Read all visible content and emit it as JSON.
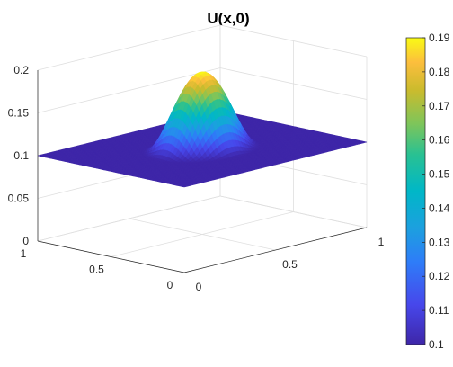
{
  "chart_data": {
    "type": "surface",
    "title": "U(x,0)",
    "xlabel": "",
    "ylabel": "",
    "zlabel": "",
    "x_ticks": [
      "0",
      "0.5",
      "1"
    ],
    "y_ticks": [
      "0",
      "0.5",
      "1"
    ],
    "z_ticks": [
      "0",
      "0.05",
      "0.1",
      "0.15",
      "0.2"
    ],
    "xlim": [
      0,
      1
    ],
    "ylim": [
      0,
      1
    ],
    "zlim": [
      0,
      0.2
    ],
    "grid": true,
    "colormap": "parula",
    "colorbar": {
      "placement": "right",
      "range": [
        0.1,
        0.19
      ],
      "ticks": [
        "0.1",
        "0.11",
        "0.12",
        "0.13",
        "0.14",
        "0.15",
        "0.16",
        "0.17",
        "0.18",
        "0.19"
      ]
    },
    "surface": {
      "baseline_value": 0.1,
      "peak_value": 0.19,
      "peak_center": [
        0.5,
        0.5
      ],
      "bump_radius": 0.25
    }
  }
}
